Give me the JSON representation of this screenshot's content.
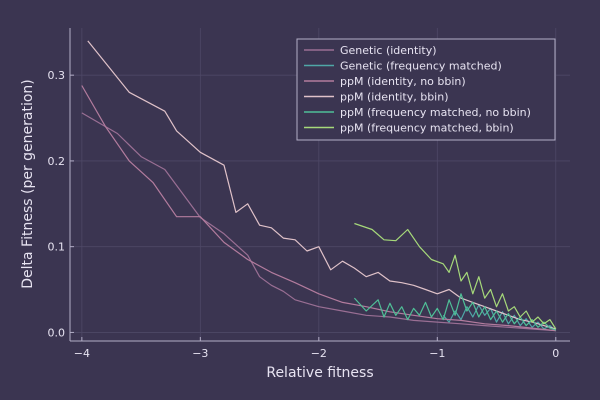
{
  "chart_data": {
    "type": "line",
    "title": "",
    "xlabel": "Relative fitness",
    "ylabel": "Delta Fitness (per generation)",
    "xlim": [
      -4.1,
      0.12
    ],
    "ylim": [
      -0.01,
      0.355
    ],
    "xticks": [
      {
        "value": -4,
        "label": "−4"
      },
      {
        "value": -3,
        "label": "−3"
      },
      {
        "value": -2,
        "label": "−2"
      },
      {
        "value": -1,
        "label": "−1"
      },
      {
        "value": 0,
        "label": "0"
      }
    ],
    "yticks": [
      {
        "value": 0.0,
        "label": "0.0"
      },
      {
        "value": 0.1,
        "label": "0.1"
      },
      {
        "value": 0.2,
        "label": "0.2"
      },
      {
        "value": 0.3,
        "label": "0.3"
      }
    ],
    "grid": true,
    "legend_position": "top-right",
    "colors": {
      "background": "#3b3551",
      "axis": "#b3aec7",
      "grid": "#4e4866",
      "text": "#e7e3f1"
    },
    "series": [
      {
        "name": "Genetic (identity)",
        "color": "#9a6f94",
        "x": [
          -4.0,
          -3.7,
          -3.5,
          -3.3,
          -3.0,
          -2.8,
          -2.6,
          -2.5,
          -2.4,
          -2.3,
          -2.2,
          -2.0,
          -1.8,
          -1.6,
          -1.4,
          -1.2,
          -1.0,
          -0.8,
          -0.6,
          -0.4,
          -0.2,
          0.0
        ],
        "y": [
          0.256,
          0.232,
          0.205,
          0.19,
          0.134,
          0.115,
          0.09,
          0.065,
          0.055,
          0.048,
          0.038,
          0.03,
          0.025,
          0.02,
          0.018,
          0.014,
          0.012,
          0.01,
          0.008,
          0.006,
          0.004,
          0.002
        ]
      },
      {
        "name": "Genetic (frequency matched)",
        "color": "#4fa7a7",
        "x": [
          -0.95,
          -0.9,
          -0.85,
          -0.8,
          -0.75,
          -0.7,
          -0.65,
          -0.6,
          -0.55,
          -0.5,
          -0.45,
          -0.4,
          -0.35,
          -0.3,
          -0.25,
          -0.2,
          -0.15,
          -0.1,
          -0.05,
          0.0
        ],
        "y": [
          0.02,
          0.012,
          0.025,
          0.015,
          0.03,
          0.018,
          0.032,
          0.02,
          0.028,
          0.012,
          0.024,
          0.01,
          0.02,
          0.008,
          0.016,
          0.006,
          0.012,
          0.004,
          0.008,
          0.002
        ]
      },
      {
        "name": "ppM (identity, no bbin)",
        "color": "#b37c9e",
        "x": [
          -4.0,
          -3.8,
          -3.6,
          -3.4,
          -3.2,
          -3.0,
          -2.8,
          -2.6,
          -2.4,
          -2.2,
          -2.0,
          -1.8,
          -1.6,
          -1.4,
          -1.2,
          -1.0,
          -0.8,
          -0.6,
          -0.4,
          -0.2,
          0.0
        ],
        "y": [
          0.288,
          0.24,
          0.2,
          0.175,
          0.135,
          0.135,
          0.105,
          0.085,
          0.07,
          0.058,
          0.045,
          0.035,
          0.03,
          0.024,
          0.02,
          0.016,
          0.014,
          0.01,
          0.008,
          0.005,
          0.002
        ]
      },
      {
        "name": "ppM (identity, bbin)",
        "color": "#e0c2c9",
        "x": [
          -3.95,
          -3.6,
          -3.3,
          -3.2,
          -3.0,
          -2.8,
          -2.7,
          -2.6,
          -2.5,
          -2.4,
          -2.3,
          -2.2,
          -2.1,
          -2.0,
          -1.9,
          -1.8,
          -1.7,
          -1.6,
          -1.5,
          -1.4,
          -1.3,
          -1.2,
          -1.1,
          -1.0,
          -0.9,
          -0.8,
          -0.7,
          -0.6,
          -0.5,
          -0.4,
          -0.3,
          -0.2,
          -0.1,
          0.0
        ],
        "y": [
          0.34,
          0.28,
          0.258,
          0.235,
          0.21,
          0.195,
          0.14,
          0.15,
          0.125,
          0.122,
          0.11,
          0.108,
          0.095,
          0.1,
          0.073,
          0.083,
          0.075,
          0.065,
          0.07,
          0.06,
          0.058,
          0.055,
          0.05,
          0.045,
          0.05,
          0.04,
          0.035,
          0.03,
          0.025,
          0.02,
          0.015,
          0.012,
          0.008,
          0.004
        ]
      },
      {
        "name": "ppM (frequency matched, no bbin)",
        "color": "#4fbf97",
        "x": [
          -1.7,
          -1.6,
          -1.5,
          -1.45,
          -1.4,
          -1.35,
          -1.3,
          -1.25,
          -1.2,
          -1.15,
          -1.1,
          -1.05,
          -1.0,
          -0.95,
          -0.9,
          -0.85,
          -0.8,
          -0.75,
          -0.7,
          -0.65,
          -0.6,
          -0.55,
          -0.5,
          -0.45,
          -0.4,
          -0.35,
          -0.3,
          -0.25,
          -0.2,
          -0.15,
          -0.1,
          -0.05,
          0.0
        ],
        "y": [
          0.04,
          0.025,
          0.038,
          0.018,
          0.034,
          0.02,
          0.03,
          0.015,
          0.028,
          0.02,
          0.035,
          0.018,
          0.028,
          0.015,
          0.038,
          0.02,
          0.045,
          0.025,
          0.035,
          0.018,
          0.03,
          0.015,
          0.025,
          0.012,
          0.022,
          0.01,
          0.018,
          0.008,
          0.015,
          0.006,
          0.012,
          0.005,
          0.003
        ]
      },
      {
        "name": "ppM (frequency matched, bbin)",
        "color": "#a6d97a",
        "x": [
          -1.7,
          -1.55,
          -1.45,
          -1.35,
          -1.25,
          -1.15,
          -1.05,
          -0.95,
          -0.9,
          -0.85,
          -0.8,
          -0.75,
          -0.7,
          -0.65,
          -0.6,
          -0.55,
          -0.5,
          -0.45,
          -0.4,
          -0.35,
          -0.3,
          -0.25,
          -0.2,
          -0.15,
          -0.1,
          -0.05,
          0.0
        ],
        "y": [
          0.127,
          0.12,
          0.108,
          0.107,
          0.12,
          0.1,
          0.085,
          0.08,
          0.07,
          0.09,
          0.06,
          0.07,
          0.045,
          0.065,
          0.04,
          0.05,
          0.03,
          0.045,
          0.025,
          0.03,
          0.018,
          0.025,
          0.012,
          0.018,
          0.01,
          0.015,
          0.004
        ]
      }
    ]
  }
}
